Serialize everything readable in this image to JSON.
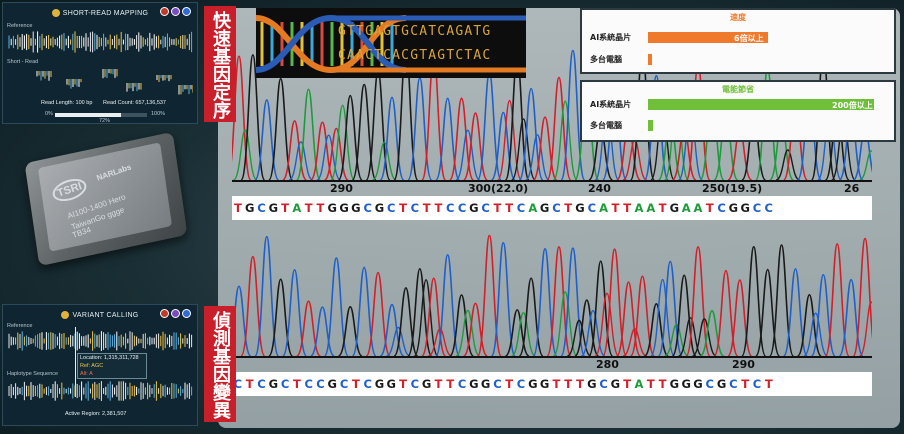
{
  "top_panel": {
    "title": "SHORT-READ MAPPING",
    "reference_label": "Reference",
    "short_read_label": "Short - Read",
    "read_length": "Read Length: 100 bp",
    "read_count": "Read Count: 657,136,537",
    "progress_start": "0%",
    "progress_end": "100%",
    "progress_value_label": "72%",
    "progress_fraction": 0.72
  },
  "bottom_panel": {
    "title": "VARIANT CALLING",
    "reference_label": "Reference",
    "haplotype_label": "Haplotype Sequence",
    "location": "Location: 1,315,311,728",
    "ref": "Ref: AGC",
    "alt": "Alt: A",
    "active_region": "Active Region: 2,381,507"
  },
  "chip": {
    "logo": "TSRI",
    "brand": "NARLabs",
    "line1": "AI100-1400 Hero",
    "line2": "TaiwanGo ggge",
    "line3": "TB34"
  },
  "labels": {
    "top": "快速基因定序",
    "bottom": "偵測基因變異"
  },
  "dna_banner": {
    "upper": "GTTGAGTGCATCAGATG",
    "lower": "CAACTCACGTAGTCTAC"
  },
  "comparison": {
    "speed": {
      "title": "速度",
      "rows": [
        {
          "label": "AI系統晶片",
          "value_text": "6倍以上",
          "fraction": 1.0
        },
        {
          "label": "多台電腦",
          "value_text": "",
          "fraction": 0.03
        }
      ],
      "color": "#f07a2c"
    },
    "power": {
      "title": "電能節省",
      "rows": [
        {
          "label": "AI系統晶片",
          "value_text": "200倍以上",
          "fraction": 1.0
        },
        {
          "label": "多台電腦",
          "value_text": "",
          "fraction": 0.02
        }
      ],
      "color": "#6fbf3a"
    }
  },
  "chromatogram_top": {
    "ticks": [
      "290",
      "300(22.0)",
      "240",
      "250(19.5)",
      "26"
    ],
    "sequence": "TGCGTATTGGGCGCTCTTCCGCTTCAGCTGCATTAATGAATCGGCC"
  },
  "chromatogram_bottom": {
    "ticks": [
      "280",
      "290"
    ],
    "sequence": "CTCGCTCCGCTCGGTCGTTCGGCTCGGTTTGCGTATTGGGCGCTCT"
  },
  "base_colors": {
    "A": "#1f9a3a",
    "C": "#1f5fc8",
    "G": "#1a1a1a",
    "T": "#d2202a"
  }
}
